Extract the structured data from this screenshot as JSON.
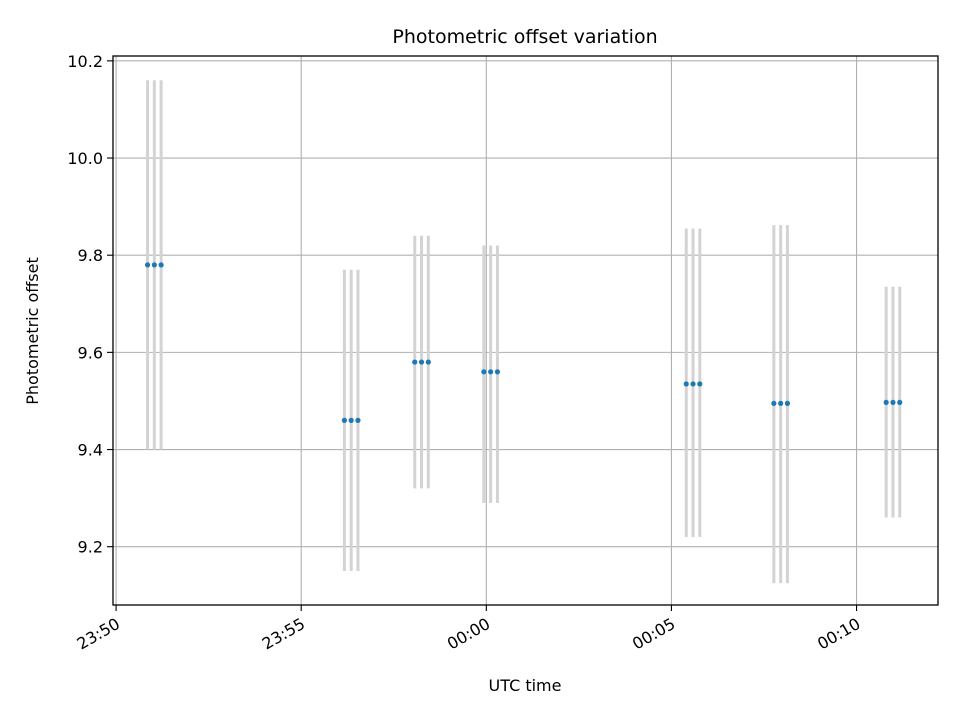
{
  "chart_data": {
    "type": "scatter",
    "title": "Photometric offset variation",
    "xlabel": "UTC time",
    "ylabel": "Photometric offset",
    "x_type": "time",
    "xlim": [
      "23:49:55",
      "00:12:12"
    ],
    "ylim": [
      9.08,
      10.21
    ],
    "xticks": [
      "23:50",
      "23:55",
      "00:00",
      "00:05",
      "00:10"
    ],
    "yticks": [
      9.2,
      9.4,
      9.6,
      9.8,
      10.0,
      10.2
    ],
    "ytick_labels": [
      "9.2",
      "9.4",
      "9.6",
      "9.8",
      "10.0",
      "10.2"
    ],
    "grid": true,
    "legend": "none",
    "colors": {
      "point": "#1f77b4",
      "errorbar": "#d3d3d3",
      "grid": "#b0b0b0"
    },
    "series": [
      {
        "points": [
          {
            "x": "23:50:51",
            "y": 9.78,
            "ylo": 9.4,
            "yhi": 10.16
          },
          {
            "x": "23:51:02",
            "y": 9.78,
            "ylo": 9.4,
            "yhi": 10.16
          },
          {
            "x": "23:51:13",
            "y": 9.78,
            "ylo": 9.4,
            "yhi": 10.16
          },
          {
            "x": "23:56:10",
            "y": 9.46,
            "ylo": 9.15,
            "yhi": 9.77
          },
          {
            "x": "23:56:21",
            "y": 9.46,
            "ylo": 9.15,
            "yhi": 9.77
          },
          {
            "x": "23:56:32",
            "y": 9.46,
            "ylo": 9.15,
            "yhi": 9.77
          },
          {
            "x": "23:58:04",
            "y": 9.58,
            "ylo": 9.32,
            "yhi": 9.84
          },
          {
            "x": "23:58:15",
            "y": 9.58,
            "ylo": 9.32,
            "yhi": 9.84
          },
          {
            "x": "23:58:26",
            "y": 9.58,
            "ylo": 9.32,
            "yhi": 9.84
          },
          {
            "x": "23:59:56",
            "y": 9.56,
            "ylo": 9.29,
            "yhi": 9.82
          },
          {
            "x": "00:00:07",
            "y": 9.56,
            "ylo": 9.29,
            "yhi": 9.82
          },
          {
            "x": "00:00:18",
            "y": 9.56,
            "ylo": 9.29,
            "yhi": 9.82
          },
          {
            "x": "00:05:24",
            "y": 9.535,
            "ylo": 9.22,
            "yhi": 9.855
          },
          {
            "x": "00:05:35",
            "y": 9.535,
            "ylo": 9.22,
            "yhi": 9.855
          },
          {
            "x": "00:05:46",
            "y": 9.535,
            "ylo": 9.22,
            "yhi": 9.855
          },
          {
            "x": "00:07:46",
            "y": 9.495,
            "ylo": 9.125,
            "yhi": 9.862
          },
          {
            "x": "00:07:57",
            "y": 9.495,
            "ylo": 9.125,
            "yhi": 9.862
          },
          {
            "x": "00:08:08",
            "y": 9.495,
            "ylo": 9.125,
            "yhi": 9.862
          },
          {
            "x": "00:10:48",
            "y": 9.497,
            "ylo": 9.26,
            "yhi": 9.735
          },
          {
            "x": "00:10:59",
            "y": 9.497,
            "ylo": 9.26,
            "yhi": 9.735
          },
          {
            "x": "00:11:10",
            "y": 9.497,
            "ylo": 9.26,
            "yhi": 9.735
          }
        ]
      }
    ]
  }
}
